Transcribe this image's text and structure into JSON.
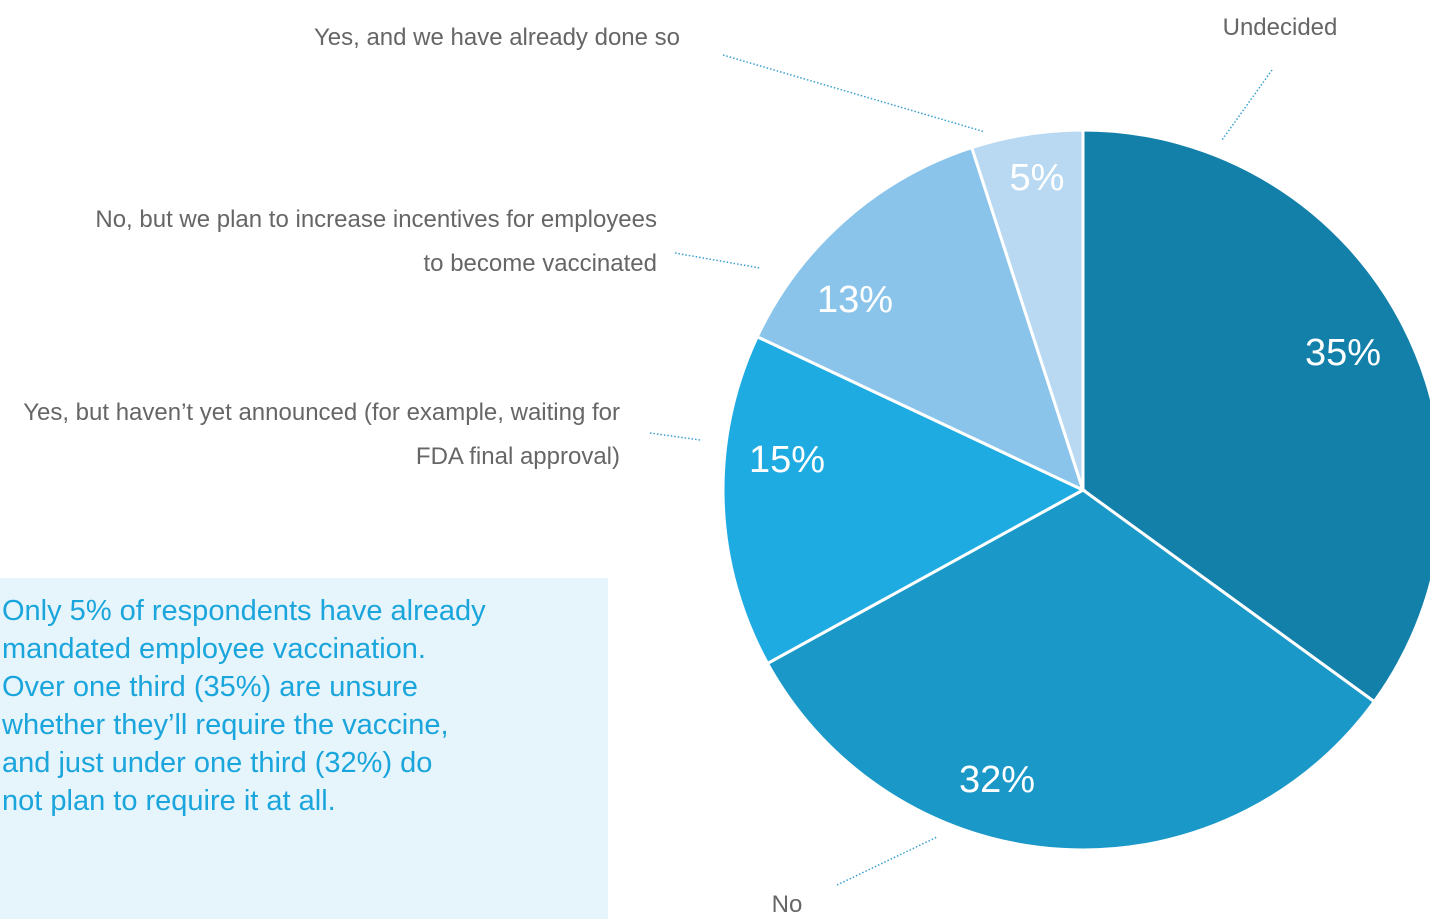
{
  "chart_data": {
    "type": "pie",
    "categories": [
      "Undecided",
      "No",
      "Yes, but haven’t yet announced (for example, waiting for FDA final approval)",
      "No, but we plan to increase incentives for employees to become vaccinated",
      "Yes, and we have already done so"
    ],
    "values": [
      35,
      32,
      15,
      13,
      5
    ],
    "value_labels": [
      "35%",
      "32%",
      "15%",
      "13%",
      "5%"
    ],
    "colors": [
      "#1380aa",
      "#1a98c8",
      "#1eabe2",
      "#8bc4ea",
      "#b8d9f1"
    ],
    "annotation": [
      "Only 5% of respondents have already",
      "mandated employee vaccination.",
      "Over one third (35%) are unsure",
      "whether they’ll require the vaccine,",
      "and just under one third (32%) do",
      "not plan to require it at all."
    ]
  }
}
